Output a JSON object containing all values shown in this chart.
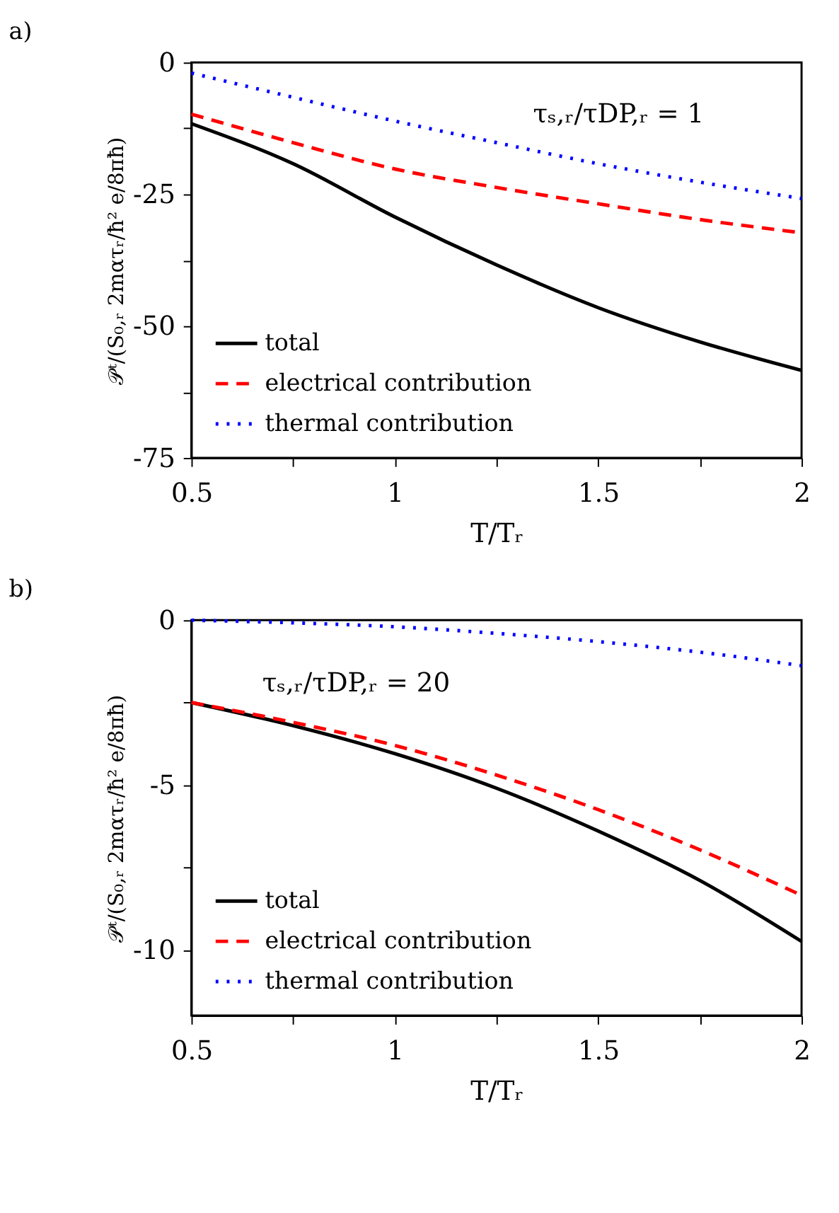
{
  "chart_data": [
    {
      "type": "line",
      "title": "a)",
      "xlabel": "T/Tᵣ",
      "ylabel": "𝒫ᵗ/(S₀,ᵣ 2mατᵣ/ħ² e/8πħ)",
      "x": [
        0.5,
        0.75,
        1,
        1.25,
        1.5,
        1.75,
        2
      ],
      "series": [
        {
          "name": "total",
          "color": "#000000",
          "line_style": "solid",
          "values": [
            -11.6,
            -19.2,
            -29.3,
            -38.4,
            -46.5,
            -53,
            -58.4
          ]
        },
        {
          "name": "electrical contribution",
          "color": "#ff0000",
          "line_style": "dashed",
          "values": [
            -9.8,
            -15.2,
            -20.2,
            -23.7,
            -26.8,
            -29.8,
            -32.3
          ]
        },
        {
          "name": "thermal contribution",
          "color": "#0000ff",
          "line_style": "dotted",
          "values": [
            -2,
            -6.6,
            -11.1,
            -15.2,
            -19.2,
            -22.7,
            -25.8
          ]
        }
      ],
      "annotations": [
        "τₛ,ᵣ/τDP,ᵣ = 1"
      ],
      "xlim": [
        0.5,
        2
      ],
      "xticks": [
        0.5,
        {
          "value": 0.75,
          "label": null
        },
        1,
        {
          "value": 1.25,
          "label": null
        },
        1.5,
        {
          "value": 1.75,
          "label": null
        },
        2
      ],
      "ylim": [
        -75,
        0
      ],
      "yticks": [
        -75,
        {
          "value": -62.5,
          "label": null
        },
        -50,
        {
          "value": -37.5,
          "label": null
        },
        -25,
        {
          "value": -12.5,
          "label": null
        },
        0
      ],
      "grid": false,
      "legend": "bottom left"
    },
    {
      "type": "line",
      "title": "b)",
      "xlabel": "T/Tᵣ",
      "ylabel": "𝒫ᵗ/(S₀,ᵣ 2mατᵣ/ħ² e/8πħ)",
      "x": [
        0.5,
        0.75,
        1,
        1.25,
        1.5,
        1.75,
        2
      ],
      "series": [
        {
          "name": "total",
          "color": "#000000",
          "line_style": "solid",
          "values": [
            -2.5,
            -3.2,
            -4.05,
            -5.1,
            -6.4,
            -7.9,
            -9.75
          ]
        },
        {
          "name": "electrical contribution",
          "color": "#ff0000",
          "line_style": "dashed",
          "values": [
            -2.5,
            -3.1,
            -3.8,
            -4.7,
            -5.75,
            -6.97,
            -8.35
          ]
        },
        {
          "name": "thermal contribution",
          "color": "#0000ff",
          "line_style": "dotted",
          "values": [
            0,
            -0.08,
            -0.2,
            -0.4,
            -0.65,
            -0.97,
            -1.38
          ]
        }
      ],
      "annotations": [
        "τₛ,ᵣ/τDP,ᵣ = 20"
      ],
      "xlim": [
        0.5,
        2
      ],
      "xticks": [
        0.5,
        {
          "value": 0.75,
          "label": null
        },
        1,
        {
          "value": 1.25,
          "label": null
        },
        1.5,
        {
          "value": 1.75,
          "label": null
        },
        2
      ],
      "ylim": [
        -12,
        0
      ],
      "yticks": [
        -10,
        {
          "value": -7.5,
          "label": null
        },
        -5,
        {
          "value": -2.5,
          "label": null
        },
        0
      ],
      "grid": false,
      "legend": "bottom left"
    }
  ]
}
